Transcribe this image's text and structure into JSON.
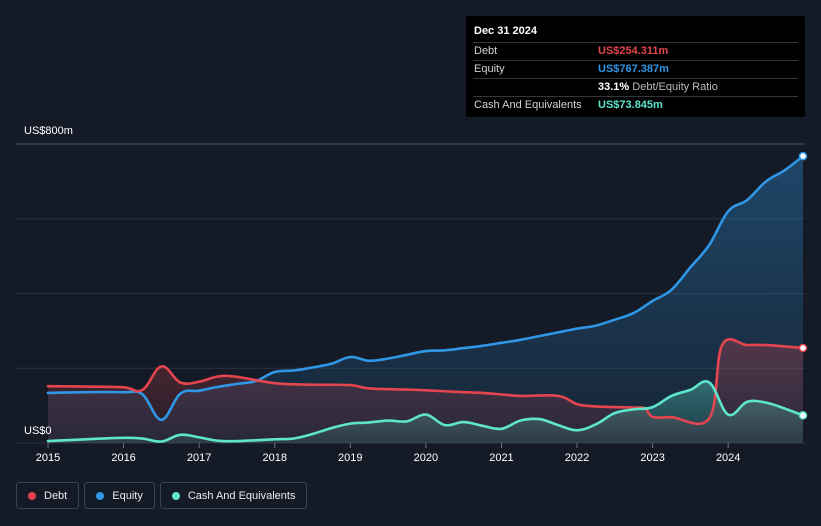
{
  "tooltip": {
    "date": "Dec 31 2024",
    "rows": [
      {
        "label": "Debt",
        "value": "US$254.311m",
        "suffix": "",
        "color": "#e5454f"
      },
      {
        "label": "Equity",
        "value": "US$767.387m",
        "suffix": "",
        "color": "#2f97e6"
      },
      {
        "label": "",
        "value": "33.1%",
        "suffix": " Debt/Equity Ratio",
        "color": "#ffffff"
      },
      {
        "label": "Cash And Equivalents",
        "value": "US$73.845m",
        "suffix": "",
        "color": "#5ee5cc"
      }
    ]
  },
  "y_axis": {
    "top_label": "US$800m",
    "zero_label": "US$0"
  },
  "legend": [
    {
      "label": "Debt",
      "color": "#e5454f"
    },
    {
      "label": "Equity",
      "color": "#2f97e6"
    },
    {
      "label": "Cash And Equivalents",
      "color": "#5ee5cc"
    }
  ],
  "chart_data": {
    "type": "area",
    "ylim": [
      0,
      800
    ],
    "xlim": [
      2015.0,
      2024.99
    ],
    "x_ticks": [
      "2015",
      "2016",
      "2017",
      "2018",
      "2019",
      "2020",
      "2021",
      "2022",
      "2023",
      "2024"
    ],
    "grid": true,
    "series": [
      {
        "name": "Debt",
        "color": "#e5454f",
        "points": [
          [
            2015.0,
            152
          ],
          [
            2015.5,
            151
          ],
          [
            2016.0,
            149
          ],
          [
            2016.25,
            142
          ],
          [
            2016.5,
            205
          ],
          [
            2016.75,
            162
          ],
          [
            2017.0,
            164
          ],
          [
            2017.25,
            178
          ],
          [
            2017.5,
            177
          ],
          [
            2018.0,
            160
          ],
          [
            2018.5,
            156
          ],
          [
            2019.0,
            155
          ],
          [
            2019.25,
            146
          ],
          [
            2019.75,
            143
          ],
          [
            2020.0,
            141
          ],
          [
            2020.5,
            136
          ],
          [
            2020.75,
            134
          ],
          [
            2021.0,
            130
          ],
          [
            2021.25,
            126
          ],
          [
            2021.75,
            126
          ],
          [
            2022.0,
            104
          ],
          [
            2022.25,
            98
          ],
          [
            2022.75,
            95
          ],
          [
            2022.9,
            93
          ],
          [
            2023.0,
            70
          ],
          [
            2023.25,
            69
          ],
          [
            2023.75,
            66
          ],
          [
            2023.92,
            262
          ],
          [
            2024.25,
            262
          ],
          [
            2024.5,
            262
          ],
          [
            2024.99,
            254.3
          ]
        ]
      },
      {
        "name": "Equity",
        "color": "#2f97e6",
        "points": [
          [
            2015.0,
            134
          ],
          [
            2015.5,
            136
          ],
          [
            2016.0,
            136
          ],
          [
            2016.25,
            130
          ],
          [
            2016.5,
            62
          ],
          [
            2016.75,
            132
          ],
          [
            2017.0,
            140
          ],
          [
            2017.25,
            150
          ],
          [
            2017.5,
            158
          ],
          [
            2017.75,
            166
          ],
          [
            2018.0,
            190
          ],
          [
            2018.25,
            194
          ],
          [
            2018.5,
            202
          ],
          [
            2018.75,
            212
          ],
          [
            2019.0,
            230
          ],
          [
            2019.25,
            220
          ],
          [
            2019.5,
            226
          ],
          [
            2019.75,
            236
          ],
          [
            2020.0,
            246
          ],
          [
            2020.25,
            248
          ],
          [
            2020.5,
            254
          ],
          [
            2020.75,
            260
          ],
          [
            2021.0,
            268
          ],
          [
            2021.25,
            276
          ],
          [
            2021.5,
            286
          ],
          [
            2021.75,
            296
          ],
          [
            2022.0,
            306
          ],
          [
            2022.25,
            314
          ],
          [
            2022.5,
            330
          ],
          [
            2022.75,
            348
          ],
          [
            2023.0,
            380
          ],
          [
            2023.25,
            410
          ],
          [
            2023.5,
            470
          ],
          [
            2023.75,
            530
          ],
          [
            2024.0,
            620
          ],
          [
            2024.25,
            650
          ],
          [
            2024.5,
            700
          ],
          [
            2024.75,
            730
          ],
          [
            2024.99,
            767.4
          ]
        ]
      },
      {
        "name": "Cash And Equivalents",
        "color": "#5ee5cc",
        "points": [
          [
            2015.0,
            5
          ],
          [
            2015.5,
            10
          ],
          [
            2016.0,
            14
          ],
          [
            2016.25,
            12
          ],
          [
            2016.5,
            4
          ],
          [
            2016.75,
            22
          ],
          [
            2017.0,
            15
          ],
          [
            2017.25,
            6
          ],
          [
            2017.5,
            5
          ],
          [
            2018.0,
            10
          ],
          [
            2018.25,
            12
          ],
          [
            2018.5,
            24
          ],
          [
            2018.75,
            40
          ],
          [
            2019.0,
            52
          ],
          [
            2019.25,
            55
          ],
          [
            2019.5,
            60
          ],
          [
            2019.75,
            58
          ],
          [
            2020.0,
            76
          ],
          [
            2020.25,
            48
          ],
          [
            2020.5,
            56
          ],
          [
            2020.75,
            46
          ],
          [
            2021.0,
            38
          ],
          [
            2021.25,
            60
          ],
          [
            2021.5,
            64
          ],
          [
            2021.75,
            48
          ],
          [
            2022.0,
            34
          ],
          [
            2022.25,
            50
          ],
          [
            2022.5,
            80
          ],
          [
            2022.75,
            90
          ],
          [
            2023.0,
            96
          ],
          [
            2023.25,
            126
          ],
          [
            2023.5,
            142
          ],
          [
            2023.75,
            162
          ],
          [
            2024.0,
            76
          ],
          [
            2024.25,
            110
          ],
          [
            2024.5,
            108
          ],
          [
            2024.75,
            92
          ],
          [
            2024.99,
            73.8
          ]
        ]
      }
    ]
  }
}
